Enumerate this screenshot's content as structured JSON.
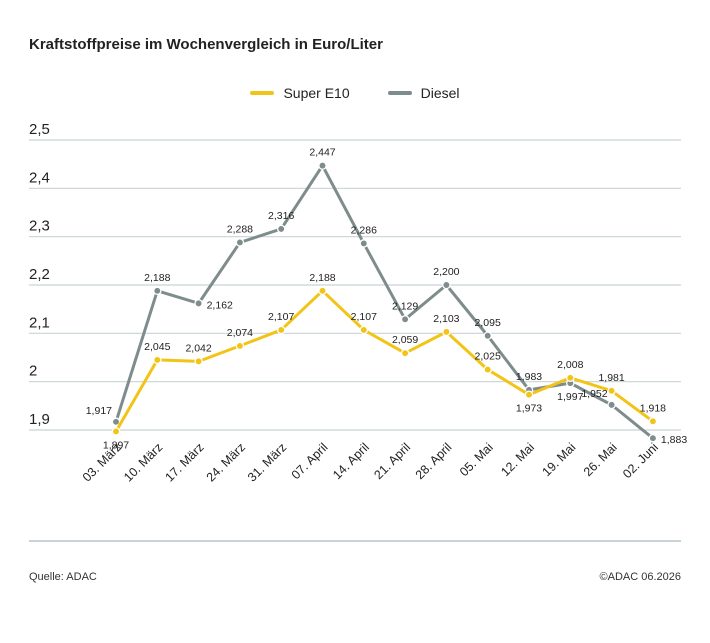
{
  "title": "Kraftstoffpreise im Wochenvergleich in Euro/Liter",
  "source": "Quelle: ADAC",
  "copyright": "©ADAC 06.2026",
  "colors": {
    "super_e10": "#f2c418",
    "diesel": "#7f8c8c",
    "grid": "#c9d3d7",
    "axis_text": "#222222"
  },
  "chart_data": {
    "type": "line",
    "title": "Kraftstoffpreise im Wochenvergleich in Euro/Liter",
    "xlabel": "",
    "ylabel": "",
    "categories": [
      "03. März",
      "10. März",
      "17. März",
      "24. März",
      "31. März",
      "07. April",
      "14. April",
      "21. April",
      "28. April",
      "05. Mai",
      "12. Mai",
      "19. Mai",
      "26. Mai",
      "02. Juni"
    ],
    "ylim": [
      1.9,
      2.5
    ],
    "yticks": [
      1.9,
      2.0,
      2.1,
      2.2,
      2.3,
      2.4,
      2.5
    ],
    "ytick_labels": [
      "1,9",
      "2",
      "2,1",
      "2,2",
      "2,3",
      "2,4",
      "2,5"
    ],
    "grid": true,
    "legend_position": "top-center",
    "series": [
      {
        "name": "Super E10",
        "color": "#f2c418",
        "values": [
          1.897,
          2.045,
          2.042,
          2.074,
          2.107,
          2.188,
          2.107,
          2.059,
          2.103,
          2.025,
          1.973,
          2.008,
          1.981,
          1.918
        ],
        "labels": [
          "1,897",
          "2,045",
          "2,042",
          "2,074",
          "2,107",
          "2,188",
          "2,107",
          "2,059",
          "2,103",
          "2,025",
          "1,973",
          "2,008",
          "1,981",
          "1,918"
        ],
        "label_side": [
          "below",
          "above",
          "above",
          "above",
          "above",
          "above",
          "above",
          "above",
          "above",
          "above",
          "below",
          "above",
          "above",
          "above"
        ]
      },
      {
        "name": "Diesel",
        "color": "#7f8c8c",
        "values": [
          1.917,
          2.188,
          2.162,
          2.288,
          2.316,
          2.447,
          2.286,
          2.129,
          2.2,
          2.095,
          1.983,
          1.997,
          1.952,
          1.883
        ],
        "labels": [
          "1,917",
          "2,188",
          "2,162",
          "2,288",
          "2,316",
          "2,447",
          "2,286",
          "2,129",
          "2,200",
          "2,095",
          "1,983",
          "1,997",
          "1,952",
          "1,883"
        ],
        "label_side": [
          "left",
          "above",
          "right",
          "above",
          "above",
          "above",
          "above",
          "above",
          "above",
          "above",
          "above",
          "below",
          "left",
          "right"
        ]
      }
    ]
  }
}
